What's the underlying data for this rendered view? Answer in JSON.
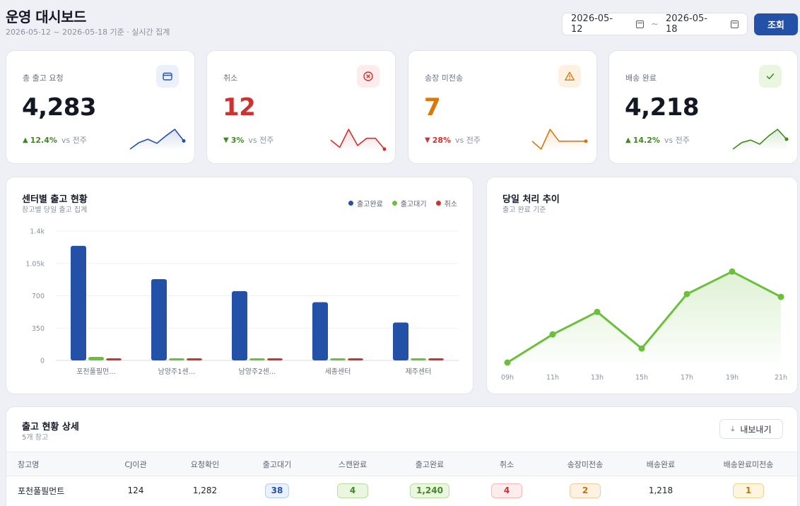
{
  "header": {
    "title": "운영 대시보드",
    "subtitle": "2026-05-12 ~ 2026-05-18 기준 · 실시간 집계",
    "date_from": "2026-05-12",
    "date_to": "2026-05-18",
    "date_sep": "~",
    "search_label": "조회"
  },
  "kpis": [
    {
      "label": "총 출고 요청",
      "value": "4,283",
      "change": "12.4%",
      "direction": "up",
      "vs": "vs 전주",
      "value_color": "#141824",
      "change_color": "#3f8a1f",
      "icon": "wallet-icon",
      "icon_bg": "#eaf1fd",
      "icon_color": "#2451a8",
      "spark_color": "#2451a8",
      "spark": [
        2,
        10,
        14,
        9,
        18,
        26,
        12
      ]
    },
    {
      "label": "취소",
      "value": "12",
      "change": "3%",
      "direction": "down",
      "vs": "vs 전주",
      "value_color": "#d0312f",
      "change_color": "#3f8a1f",
      "icon": "x-circle-icon",
      "icon_bg": "#fdecec",
      "icon_color": "#d0312f",
      "spark_color": "#d0312f",
      "spark": [
        14,
        6,
        26,
        8,
        16,
        16,
        4
      ]
    },
    {
      "label": "송장 미전송",
      "value": "7",
      "change": "28%",
      "direction": "down",
      "vs": "vs 전주",
      "value_color": "#d9770b",
      "change_color": "#d0312f",
      "icon": "warning-icon",
      "icon_bg": "#fdf1e2",
      "icon_color": "#d9770b",
      "spark_color": "#d9770b",
      "spark": [
        12,
        4,
        24,
        12,
        12,
        12,
        12
      ]
    },
    {
      "label": "배송 완료",
      "value": "4,218",
      "change": "14.2%",
      "direction": "up",
      "vs": "vs 전주",
      "value_color": "#141824",
      "change_color": "#3f8a1f",
      "icon": "check-icon",
      "icon_bg": "#eaf6df",
      "icon_color": "#3f8a1f",
      "spark_color": "#3f8a1f",
      "spark": [
        2,
        10,
        13,
        8,
        18,
        26,
        14
      ]
    }
  ],
  "center_chart": {
    "title": "센터별 출고 현황",
    "subtitle": "창고별 당일 출고 집계"
  },
  "trend_chart": {
    "title": "당일 처리 추이",
    "subtitle": "출고 완료 기준"
  },
  "chart_data": [
    {
      "type": "bar",
      "categories": [
        "포천풀필먼...",
        "남양주1센...",
        "남양주2센...",
        "세종센터",
        "제주센터"
      ],
      "series": [
        {
          "name": "출고완료",
          "color": "#2451a8",
          "values": [
            1240,
            880,
            750,
            630,
            410
          ]
        },
        {
          "name": "출고대기",
          "color": "#6bbf3a",
          "values": [
            38,
            12,
            22,
            10,
            12
          ]
        },
        {
          "name": "취소",
          "color": "#d0312f",
          "values": [
            4,
            4,
            6,
            5,
            5
          ]
        }
      ],
      "y_ticks": [
        "0",
        "350",
        "700",
        "1.05k",
        "1.4k"
      ],
      "ylim": [
        0,
        1400
      ],
      "legend": "top-right"
    },
    {
      "type": "area",
      "x": [
        "09h",
        "11h",
        "13h",
        "15h",
        "17h",
        "19h",
        "21h"
      ],
      "values": [
        0,
        30,
        54,
        15,
        73,
        97,
        70
      ],
      "ylim": [
        0,
        110
      ],
      "color": "#6bbf3a",
      "grid": false
    }
  ],
  "table": {
    "title": "출고 현황 상세",
    "subtitle": "5개 창고",
    "export_label": "내보내기",
    "columns": [
      "창고명",
      "CJ이관",
      "요청확인",
      "출고대기",
      "스캔완료",
      "출고완료",
      "취소",
      "송장미전송",
      "배송완료",
      "배송완료미전송"
    ],
    "rows": [
      [
        "포천풀필먼트",
        "124",
        "1,282",
        "38",
        "4",
        "1,240",
        "4",
        "2",
        "1,218",
        "1"
      ]
    ]
  }
}
